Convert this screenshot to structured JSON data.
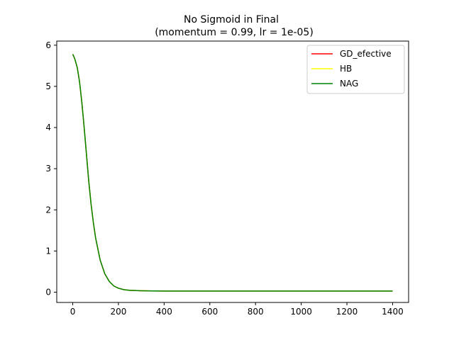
{
  "chart_data": {
    "type": "line",
    "title": "No Sigmoid in Final",
    "subtitle": "(momentum = 0.99, lr = 1e-05)",
    "xlabel": "",
    "ylabel": "",
    "xlim": [
      -70,
      1470
    ],
    "ylim": [
      -0.25,
      6.1
    ],
    "xticks": [
      0,
      200,
      400,
      600,
      800,
      1000,
      1200,
      1400
    ],
    "yticks": [
      0,
      1,
      2,
      3,
      4,
      5,
      6
    ],
    "grid": false,
    "legend": "top-right",
    "x": [
      0,
      5,
      10,
      20,
      30,
      40,
      50,
      60,
      70,
      80,
      90,
      100,
      120,
      140,
      160,
      180,
      200,
      225,
      250,
      300,
      350,
      400,
      500,
      600,
      800,
      1000,
      1200,
      1400
    ],
    "series": [
      {
        "name": "GD_efective",
        "color": "#ff0000",
        "values": [
          5.78,
          5.72,
          5.65,
          5.45,
          5.1,
          4.6,
          4.0,
          3.35,
          2.7,
          2.15,
          1.7,
          1.32,
          0.78,
          0.45,
          0.26,
          0.15,
          0.095,
          0.06,
          0.045,
          0.035,
          0.03,
          0.028,
          0.027,
          0.027,
          0.027,
          0.027,
          0.027,
          0.027
        ]
      },
      {
        "name": "HB",
        "color": "#ffff00",
        "values": [
          5.78,
          5.72,
          5.65,
          5.45,
          5.1,
          4.6,
          4.0,
          3.35,
          2.7,
          2.15,
          1.7,
          1.32,
          0.78,
          0.45,
          0.26,
          0.15,
          0.095,
          0.06,
          0.045,
          0.035,
          0.03,
          0.028,
          0.027,
          0.027,
          0.027,
          0.027,
          0.027,
          0.027
        ]
      },
      {
        "name": "NAG",
        "color": "#008000",
        "values": [
          5.78,
          5.72,
          5.65,
          5.45,
          5.1,
          4.6,
          4.0,
          3.35,
          2.7,
          2.15,
          1.7,
          1.32,
          0.78,
          0.45,
          0.26,
          0.15,
          0.095,
          0.06,
          0.045,
          0.035,
          0.03,
          0.028,
          0.027,
          0.027,
          0.027,
          0.027,
          0.027,
          0.027
        ]
      }
    ]
  }
}
